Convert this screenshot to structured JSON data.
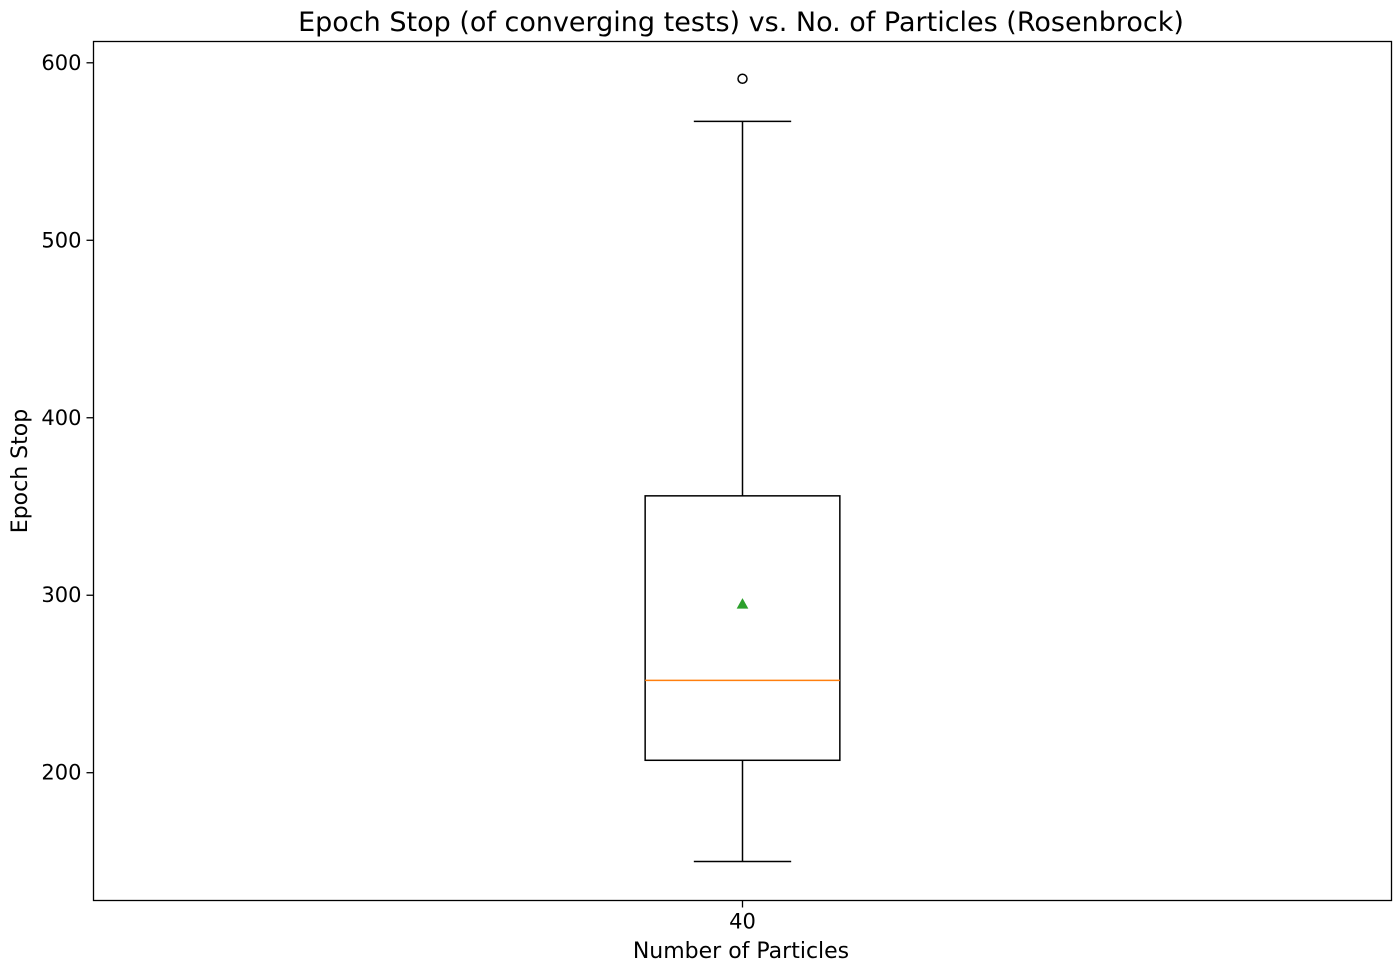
{
  "chart_data": {
    "type": "box",
    "title": "Epoch Stop (of converging tests) vs. No. of Particles (Rosenbrock)",
    "xlabel": "Number of Particles",
    "ylabel": "Epoch Stop",
    "categories": [
      "40"
    ],
    "ylim": [
      128,
      612
    ],
    "yticks": [
      200,
      300,
      400,
      500,
      600
    ],
    "ytick_labels": [
      "200",
      "300",
      "400",
      "500",
      "600"
    ],
    "grid": false,
    "boxes": [
      {
        "category": "40",
        "whisker_low": 150,
        "q1": 207,
        "median": 252,
        "mean": 295,
        "q3": 356,
        "whisker_high": 567,
        "outliers": [
          591
        ]
      }
    ],
    "colors": {
      "box": "#000000",
      "median": "#ff7f0e",
      "mean": "#2ca02c",
      "outlier": "#000000"
    }
  }
}
